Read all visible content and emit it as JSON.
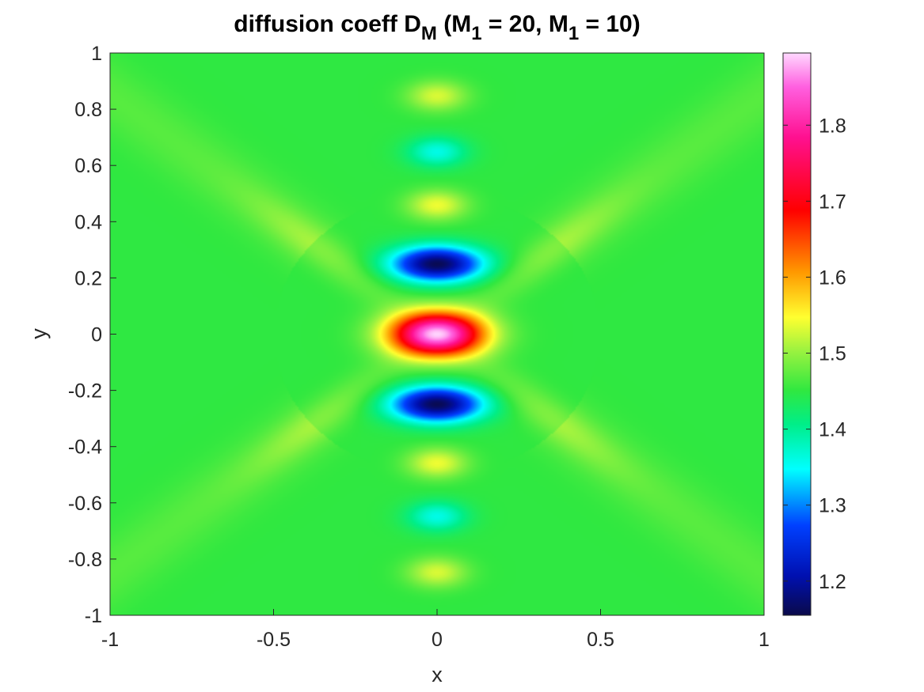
{
  "chart_data": {
    "type": "heatmap",
    "title": {
      "prefix": "diffusion coeff D",
      "sub1": "M",
      "part2": " (M",
      "sub2": "1",
      "part3": " = 20, M",
      "sub3": "1",
      "part4": " = 10)"
    },
    "xlabel": "x",
    "ylabel": "y",
    "xlim": [
      -1,
      1
    ],
    "ylim": [
      -1,
      1
    ],
    "xticks": [
      -1,
      -0.5,
      0,
      0.5,
      1
    ],
    "xtick_labels": [
      "-1",
      "-0.5",
      "0",
      "0.5",
      "1"
    ],
    "yticks": [
      -1,
      -0.8,
      -0.6,
      -0.4,
      -0.2,
      0,
      0.2,
      0.4,
      0.6,
      0.8,
      1
    ],
    "ytick_labels": [
      "-1",
      "-0.8",
      "-0.6",
      "-0.4",
      "-0.2",
      "0",
      "0.2",
      "0.4",
      "0.6",
      "0.8",
      "1"
    ],
    "colormap": "hsv-like (navy-blue-cyan-green-yellow-orange-red-magenta-pink)",
    "colorbar": {
      "range": [
        1.155,
        1.895
      ],
      "ticks": [
        1.2,
        1.3,
        1.4,
        1.5,
        1.6,
        1.7,
        1.8
      ],
      "tick_labels": [
        "1.2",
        "1.3",
        "1.4",
        "1.5",
        "1.6",
        "1.7",
        "1.8"
      ]
    },
    "background_value": 1.45,
    "features": [
      {
        "kind": "peak",
        "x": 0,
        "y": 0,
        "value": 1.89
      },
      {
        "kind": "trough",
        "x": 0,
        "y": 0.25,
        "value": 1.16
      },
      {
        "kind": "trough",
        "x": 0,
        "y": -0.25,
        "value": 1.16
      },
      {
        "kind": "peak",
        "x": 0,
        "y": 0.46,
        "value": 1.54
      },
      {
        "kind": "peak",
        "x": 0,
        "y": -0.46,
        "value": 1.54
      },
      {
        "kind": "trough",
        "x": 0,
        "y": 0.65,
        "value": 1.36
      },
      {
        "kind": "trough",
        "x": 0,
        "y": -0.65,
        "value": 1.36
      },
      {
        "kind": "peak",
        "x": 0,
        "y": 0.85,
        "value": 1.53
      },
      {
        "kind": "peak",
        "x": 0,
        "y": -0.85,
        "value": 1.53
      }
    ]
  }
}
